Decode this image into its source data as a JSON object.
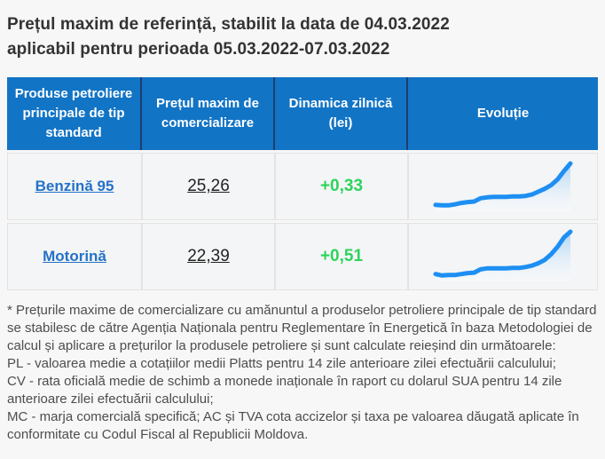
{
  "page": {
    "title_line1": "Prețul maxim de referință, stabilit la data de 04.03.2022",
    "title_line2": "aplicabil pentru perioada 05.03.2022-07.03.2022"
  },
  "table": {
    "headers": [
      "Produse petroliere principale de tip standard",
      "Prețul maxim de comercializare",
      "Dinamica zilnică (lei)",
      "Evoluție"
    ],
    "rows": [
      {
        "product": "Benzină 95",
        "price": "25,26",
        "dynamic": "+0,33"
      },
      {
        "product": "Motorină",
        "price": "22,39",
        "dynamic": "+0,51"
      }
    ]
  },
  "chart_data": [
    {
      "type": "area",
      "title": "Evoluție Benzină 95",
      "x": [
        0,
        5,
        10,
        14,
        19,
        24,
        29,
        33,
        38,
        43,
        48,
        52,
        57,
        62,
        67,
        71,
        76,
        81,
        86,
        90,
        95,
        100
      ],
      "values": [
        8,
        7,
        7,
        9,
        12,
        14,
        15,
        22,
        24,
        25,
        25,
        25,
        26,
        26,
        27,
        30,
        36,
        42,
        50,
        62,
        80,
        96
      ],
      "ylim": [
        0,
        100
      ],
      "grid": false,
      "legend": "none",
      "note": "sparkline, values normalized 0-100 from pixel readout; endpoint corresponds to current price 25,26"
    },
    {
      "type": "area",
      "title": "Evoluție Motorină",
      "x": [
        0,
        5,
        10,
        14,
        19,
        24,
        29,
        33,
        38,
        43,
        48,
        52,
        57,
        62,
        67,
        71,
        76,
        81,
        86,
        90,
        95,
        100
      ],
      "values": [
        10,
        7,
        8,
        8,
        10,
        12,
        13,
        20,
        22,
        22,
        22,
        22,
        23,
        23,
        25,
        28,
        33,
        40,
        52,
        68,
        88,
        100
      ],
      "ylim": [
        0,
        100
      ],
      "grid": false,
      "legend": "none",
      "note": "sparkline, values normalized 0-100 from pixel readout; endpoint corresponds to current price 22,39"
    }
  ],
  "footnote": {
    "p1": "* Prețurile maxime de comercializare cu amănuntul a produselor petroliere principale de tip standard se stabilesc de către Agenția Naționala pentru Reglementare în Energetică în baza Metodologiei de calcul și aplicare a prețurilor la produsele petroliere și sunt calculate reieșind din următoarele:",
    "p2": "PL - valoarea medie a cotațiilor medii Platts pentru 14 zile anterioare zilei efectuării calculului;",
    "p3": "CV - rata oficială medie de schimb a monede inaționale în raport cu dolarul SUA pentru 14 zile anterioare zilei efectuării calculului;",
    "p4": "MC - marja comercială specifică; AC și TVA cota accizelor și taxa pe valoarea dăugată aplicate în conformitate cu Codul Fiscal al Republicii Moldova."
  },
  "colors": {
    "header_bg": "#1274c5",
    "header_divider": "#1c3e6e",
    "link_blue": "#2472c8",
    "positive_green": "#2ed35b",
    "spark_line": "#1e8ff2",
    "spark_fill_top": "#a9d1f3",
    "spark_fill_bottom": "#fbfdff",
    "page_bg": "#f7f7f7"
  }
}
